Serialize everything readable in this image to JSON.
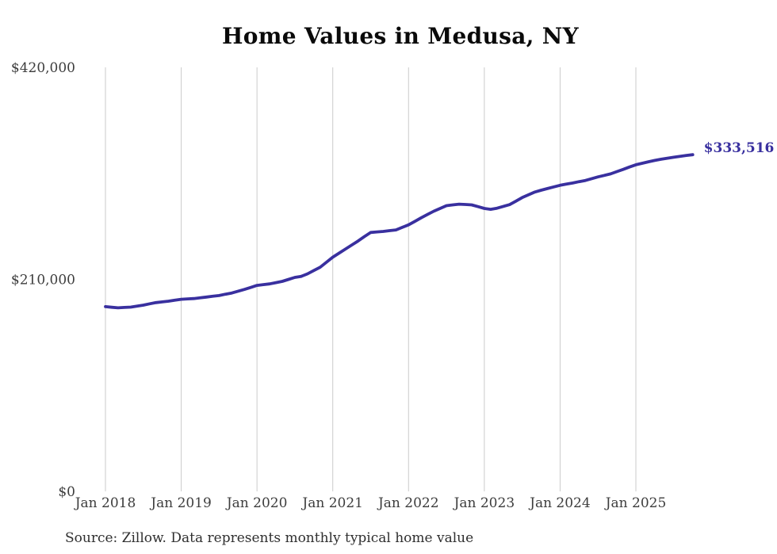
{
  "title": "Home Values in Medusa, NY",
  "source_note": "Source: Zillow. Data represents monthly typical home value",
  "colors": {
    "line": "#39309f",
    "end_label": "#39309f",
    "axis_text": "#3d3d3d",
    "gridline": "#cbcbcb",
    "title_text": "#0a0a0a",
    "source_text": "#2f2f2f",
    "background": "#ffffff"
  },
  "chart_data": {
    "type": "line",
    "title": "Home Values in Medusa, NY",
    "xlabel": "",
    "ylabel": "",
    "ylim": [
      0,
      420000
    ],
    "grid": "vertical-only",
    "legend": "none",
    "end_value_label": "$333,516",
    "y_ticks": [
      {
        "label": "$420,000",
        "value": 420000
      },
      {
        "label": "$210,000",
        "value": 210000
      },
      {
        "label": "$0",
        "value": 0
      }
    ],
    "x_ticks": [
      {
        "label": "Jan 2018",
        "month_index": 0
      },
      {
        "label": "Jan 2019",
        "month_index": 12
      },
      {
        "label": "Jan 2020",
        "month_index": 24
      },
      {
        "label": "Jan 2021",
        "month_index": 36
      },
      {
        "label": "Jan 2022",
        "month_index": 48
      },
      {
        "label": "Jan 2023",
        "month_index": 60
      },
      {
        "label": "Jan 2024",
        "month_index": 72
      },
      {
        "label": "Jan 2025",
        "month_index": 84
      }
    ],
    "series": [
      {
        "name": "Monthly typical home value",
        "frequency": "monthly",
        "start": "Jan 2018",
        "end": "Oct 2025",
        "final_value": 333516,
        "values": [
          183000,
          182400,
          181800,
          182200,
          182500,
          183500,
          184500,
          185800,
          187000,
          187700,
          188400,
          189400,
          190300,
          190700,
          191000,
          191800,
          192500,
          193300,
          194000,
          195300,
          196500,
          198300,
          200000,
          202000,
          204000,
          204800,
          205500,
          206800,
          208000,
          210000,
          212000,
          213000,
          215500,
          218800,
          222000,
          227000,
          232000,
          236000,
          240000,
          244000,
          248000,
          252300,
          256500,
          257000,
          257500,
          258300,
          259000,
          261500,
          264000,
          267500,
          271000,
          274300,
          277500,
          280300,
          283000,
          283800,
          284500,
          284200,
          283800,
          282100,
          280300,
          279400,
          280500,
          282300,
          284000,
          287500,
          291000,
          293800,
          296500,
          298300,
          300000,
          301600,
          303200,
          304400,
          305500,
          306800,
          308000,
          309800,
          311500,
          313000,
          314500,
          316800,
          319000,
          321300,
          323500,
          325000,
          326500,
          327800,
          329000,
          330000,
          331000,
          331900,
          332800,
          333516
        ]
      }
    ]
  }
}
